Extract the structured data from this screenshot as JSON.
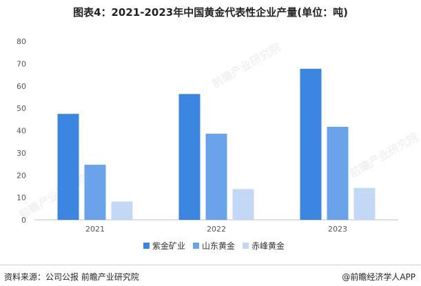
{
  "title": "图表4：2021-2023年中国黄金代表性企业产量(单位：吨)",
  "footer": {
    "source": "资料来源：公司公报 前瞻产业研究院",
    "brand": "@前瞻经济学人APP"
  },
  "watermark": {
    "text": "前瞻产业研究院"
  },
  "chart_data": {
    "type": "bar",
    "title": "图表4：2021-2023年中国黄金代表性企业产量(单位：吨)",
    "xlabel": "",
    "ylabel": "",
    "categories": [
      "2021",
      "2022",
      "2023"
    ],
    "ylim": [
      0,
      80
    ],
    "yticks": [
      0,
      10,
      20,
      30,
      40,
      50,
      60,
      70,
      80
    ],
    "grid": false,
    "legend_position": "bottom",
    "series": [
      {
        "name": "紫金矿业",
        "color": "#3d86e0",
        "values": [
          47.5,
          56.4,
          67.7
        ]
      },
      {
        "name": "山东黄金",
        "color": "#6aa3ea",
        "values": [
          24.7,
          38.6,
          41.7
        ]
      },
      {
        "name": "赤峰黄金",
        "color": "#c2d8f6",
        "values": [
          8.2,
          13.8,
          14.3
        ]
      }
    ]
  }
}
